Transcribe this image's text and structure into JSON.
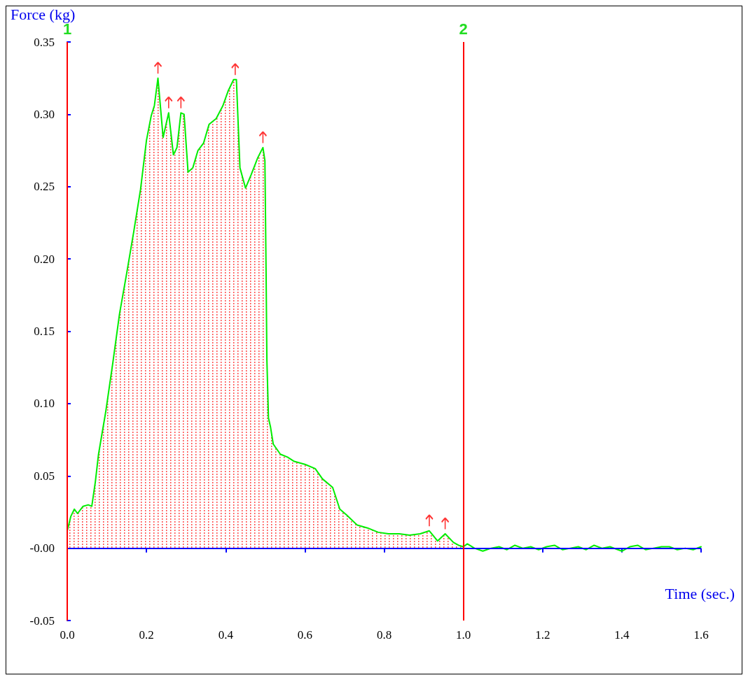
{
  "chart_data": {
    "type": "area",
    "xlabel": "Time (sec.)",
    "ylabel": "Force (kg)",
    "xlim": [
      0,
      1.6
    ],
    "ylim": [
      -0.05,
      0.35
    ],
    "xticks": [
      {
        "value": 0,
        "label": "0.0"
      },
      0.2,
      0.4,
      0.6,
      0.8,
      {
        "value": 1,
        "label": "1.0"
      },
      1.2,
      1.4,
      1.6
    ],
    "yticks": [
      -0.05,
      {
        "value": 0,
        "label": "-0.00"
      },
      0.05,
      {
        "value": 0.1,
        "label": "0.10"
      },
      0.15,
      {
        "value": 0.2,
        "label": "0.20"
      },
      0.25,
      {
        "value": 0.3,
        "label": "0.30"
      },
      0.35
    ],
    "grid": false,
    "line_style": "solid",
    "ref_lines": [
      {
        "axis": "y",
        "value": 0,
        "color": "#0000ff"
      },
      {
        "axis": "x",
        "value": 0,
        "color": "#ff0000"
      },
      {
        "axis": "x",
        "value": 1,
        "color": "#ff0000"
      }
    ],
    "annotations": [
      {
        "text": "1",
        "x": 0,
        "y": 0.35
      },
      {
        "text": "2",
        "x": 1,
        "y": 0.35
      }
    ],
    "series": [
      {
        "color": "#00ee00",
        "x": [
          0,
          0.009,
          0.018,
          0.026,
          0.04,
          0.053,
          0.062,
          0.071,
          0.079,
          0.097,
          0.115,
          0.132,
          0.15,
          0.168,
          0.185,
          0.2,
          0.212,
          0.22,
          0.229,
          0.242,
          0.256,
          0.268,
          0.277,
          0.287,
          0.295,
          0.305,
          0.317,
          0.33,
          0.344,
          0.358,
          0.376,
          0.393,
          0.406,
          0.42,
          0.427,
          0.436,
          0.45,
          0.464,
          0.481,
          0.494,
          0.499,
          0.502,
          0.504,
          0.508,
          0.513,
          0.52,
          0.538,
          0.556,
          0.573,
          0.6,
          0.626,
          0.644,
          0.67,
          0.688,
          0.705,
          0.732,
          0.758,
          0.785,
          0.811,
          0.838,
          0.864,
          0.891,
          0.914,
          0.935,
          0.954,
          0.975,
          0.988,
          1.0
        ],
        "values": [
          0.012,
          0.022,
          0.027,
          0.024,
          0.029,
          0.03,
          0.029,
          0.046,
          0.065,
          0.094,
          0.128,
          0.162,
          0.19,
          0.219,
          0.248,
          0.282,
          0.299,
          0.306,
          0.325,
          0.284,
          0.301,
          0.272,
          0.277,
          0.301,
          0.3,
          0.26,
          0.263,
          0.275,
          0.28,
          0.293,
          0.297,
          0.306,
          0.316,
          0.324,
          0.324,
          0.263,
          0.249,
          0.258,
          0.27,
          0.277,
          0.268,
          0.19,
          0.13,
          0.09,
          0.084,
          0.072,
          0.065,
          0.063,
          0.06,
          0.058,
          0.055,
          0.048,
          0.042,
          0.027,
          0.023,
          0.016,
          0.014,
          0.011,
          0.01,
          0.01,
          0.009,
          0.01,
          0.012,
          0.005,
          0.01,
          0.004,
          0.002,
          0.001
        ]
      },
      {
        "type": "line",
        "color": "#00ee00",
        "x": [
          1.0,
          1.01,
          1.028,
          1.049,
          1.07,
          1.09,
          1.11,
          1.13,
          1.15,
          1.17,
          1.19,
          1.21,
          1.23,
          1.25,
          1.27,
          1.29,
          1.31,
          1.33,
          1.35,
          1.37,
          1.39,
          1.4,
          1.42,
          1.44,
          1.46,
          1.48,
          1.5,
          1.52,
          1.54,
          1.56,
          1.58,
          1.6
        ],
        "values": [
          0.001,
          0.003,
          0,
          -0.002,
          0,
          0.001,
          -0.001,
          0.002,
          0,
          0.001,
          -0.001,
          0.001,
          0.002,
          -0.001,
          0,
          0.001,
          -0.001,
          0.002,
          0,
          0.001,
          -0.001,
          -0.002,
          0.001,
          0.002,
          -0.001,
          0,
          0.001,
          0.001,
          -0.001,
          0,
          -0.001,
          0.001
        ]
      },
      {
        "type": "scatter",
        "color": "#ff0000",
        "x": [
          0.229,
          0.256,
          0.287,
          0.424,
          0.494,
          0.914,
          0.954
        ],
        "values": [
          0.332,
          0.308,
          0.308,
          0.331,
          0.284,
          0.019,
          0.017
        ]
      }
    ]
  }
}
